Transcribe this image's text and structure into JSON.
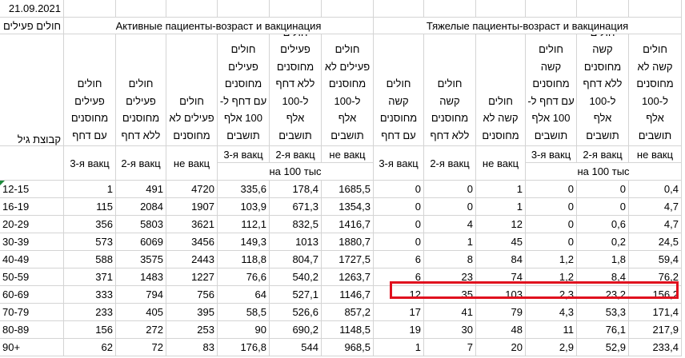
{
  "date": "21.09.2021",
  "headers": {
    "age_top": "חולים פעילים",
    "age_bottom": "קבוצת גיל",
    "group_active": "Активные пациенты-возраст и вакцинация",
    "group_severe": "Тяжелые пациенты-возраст и вакцинация",
    "columns": [
      [
        "חולים",
        "פעילים",
        "מחוסנים",
        "עם דחף"
      ],
      [
        "חולים",
        "פעילים",
        "מחוסנים",
        "ללא דחף"
      ],
      [
        "חולים",
        "פעילים לא",
        "מחוסנים"
      ],
      [
        "חולים",
        "פעילים",
        "מחוסנים",
        "עם דחף ל-",
        "100 אלף",
        "תושבים"
      ],
      [
        "חולים",
        "פעילים",
        "מחוסנים",
        "ללא דחף",
        "ל-100",
        "אלף",
        "תושבים"
      ],
      [
        "חולים",
        "פעילים לא",
        "מחוסנים",
        "ל-100",
        "אלף",
        "תושבים"
      ],
      [
        "חולים",
        "קשה",
        "מחוסנים",
        "עם דחף"
      ],
      [
        "חולים",
        "קשה",
        "מחוסנים",
        "ללא דחף"
      ],
      [
        "חולים",
        "קשה לא",
        "מחוסנים"
      ],
      [
        "חולים",
        "קשה",
        "מחוסנים",
        "עם דחף ל-",
        "100 אלף",
        "תושבים"
      ],
      [
        "חולים",
        "קשה",
        "מחוסנים",
        "ללא דחף",
        "ל-100",
        "אלף",
        "תושבים"
      ],
      [
        "חולים",
        "קשה לא",
        "מחוסנים",
        "ל-100",
        "אלף",
        "תושבים"
      ]
    ],
    "vacc": [
      "3-я вакц",
      "2-я вакц",
      "не вакц",
      "3-я вакц",
      "2-я вакц",
      "не вакц",
      "3-я вакц",
      "2-я вакц",
      "не вакц",
      "3-я вакц",
      "2-я вакц",
      "не вакц"
    ],
    "per_100k": [
      "на 100 тыс",
      "на 100 тыс"
    ]
  },
  "rows": [
    [
      "12-15",
      "1",
      "491",
      "4720",
      "335,6",
      "178,4",
      "1685,5",
      "0",
      "0",
      "1",
      "0",
      "0",
      "0,4"
    ],
    [
      "16-19",
      "115",
      "2084",
      "1907",
      "103,9",
      "671,3",
      "1354,3",
      "0",
      "0",
      "1",
      "0",
      "0",
      "4,7"
    ],
    [
      "20-29",
      "356",
      "5803",
      "3621",
      "112,1",
      "832,5",
      "1416,7",
      "0",
      "4",
      "12",
      "0",
      "0,6",
      "4,7"
    ],
    [
      "30-39",
      "573",
      "6069",
      "3456",
      "149,3",
      "1013",
      "1880,7",
      "0",
      "1",
      "45",
      "0",
      "0,2",
      "24,5"
    ],
    [
      "40-49",
      "588",
      "3575",
      "2443",
      "118,8",
      "804,7",
      "1727,5",
      "6",
      "8",
      "84",
      "1,2",
      "1,8",
      "59,4"
    ],
    [
      "50-59",
      "371",
      "1483",
      "1227",
      "76,6",
      "540,2",
      "1263,7",
      "6",
      "23",
      "74",
      "1,2",
      "8,4",
      "76,2"
    ],
    [
      "60-69",
      "333",
      "794",
      "756",
      "64",
      "527,1",
      "1146,7",
      "12",
      "35",
      "103",
      "2,3",
      "23,2",
      "156,2"
    ],
    [
      "70-79",
      "233",
      "405",
      "395",
      "58,5",
      "526,6",
      "857,2",
      "17",
      "41",
      "79",
      "4,3",
      "53,3",
      "171,4"
    ],
    [
      "80-89",
      "156",
      "272",
      "253",
      "90",
      "690,2",
      "1148,5",
      "19",
      "30",
      "48",
      "11",
      "76,1",
      "217,9"
    ],
    [
      "90+",
      "62",
      "72",
      "83",
      "176,8",
      "544",
      "968,5",
      "1",
      "7",
      "20",
      "2,9",
      "52,9",
      "233,4"
    ]
  ]
}
